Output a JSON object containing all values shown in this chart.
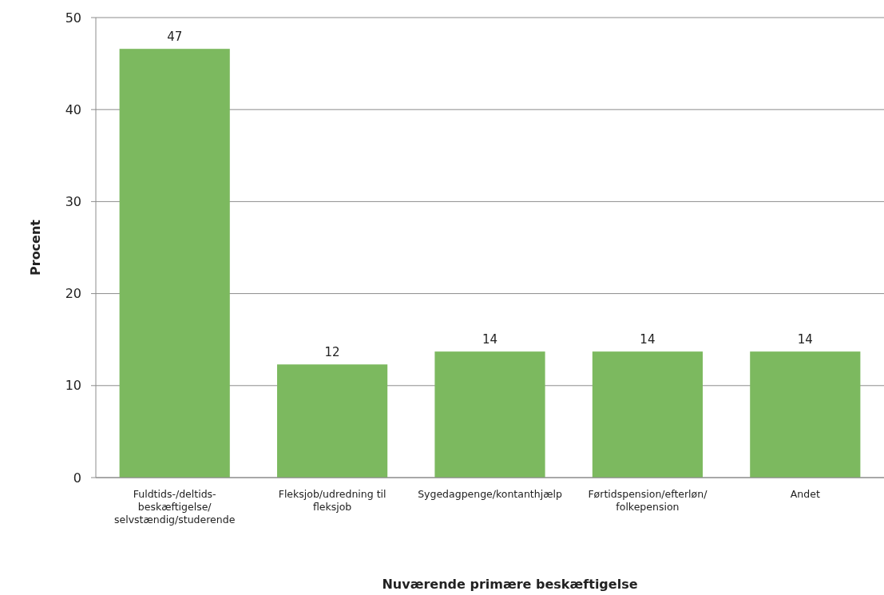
{
  "chart_data": {
    "type": "bar",
    "xlabel": "Nuværende primære beskæftigelse",
    "ylabel": "Procent",
    "categories": [
      "Fuldtids-/deltids-beskæftigelse/selvstændig/studerende",
      "Fleksjob/udredning til fleksjob",
      "Sygedagpenge/kontanthjælp",
      "Førtidspension/efterløn/folkepension",
      "Andet"
    ],
    "values": [
      46.6,
      12.3,
      13.7,
      13.7,
      13.7
    ],
    "value_labels": [
      "47",
      "12",
      "14",
      "14",
      "14"
    ],
    "color": "#7cb95f",
    "ylim": [
      0,
      50
    ],
    "yticks": [
      0,
      10,
      20,
      30,
      40,
      50
    ],
    "grid": "y"
  }
}
